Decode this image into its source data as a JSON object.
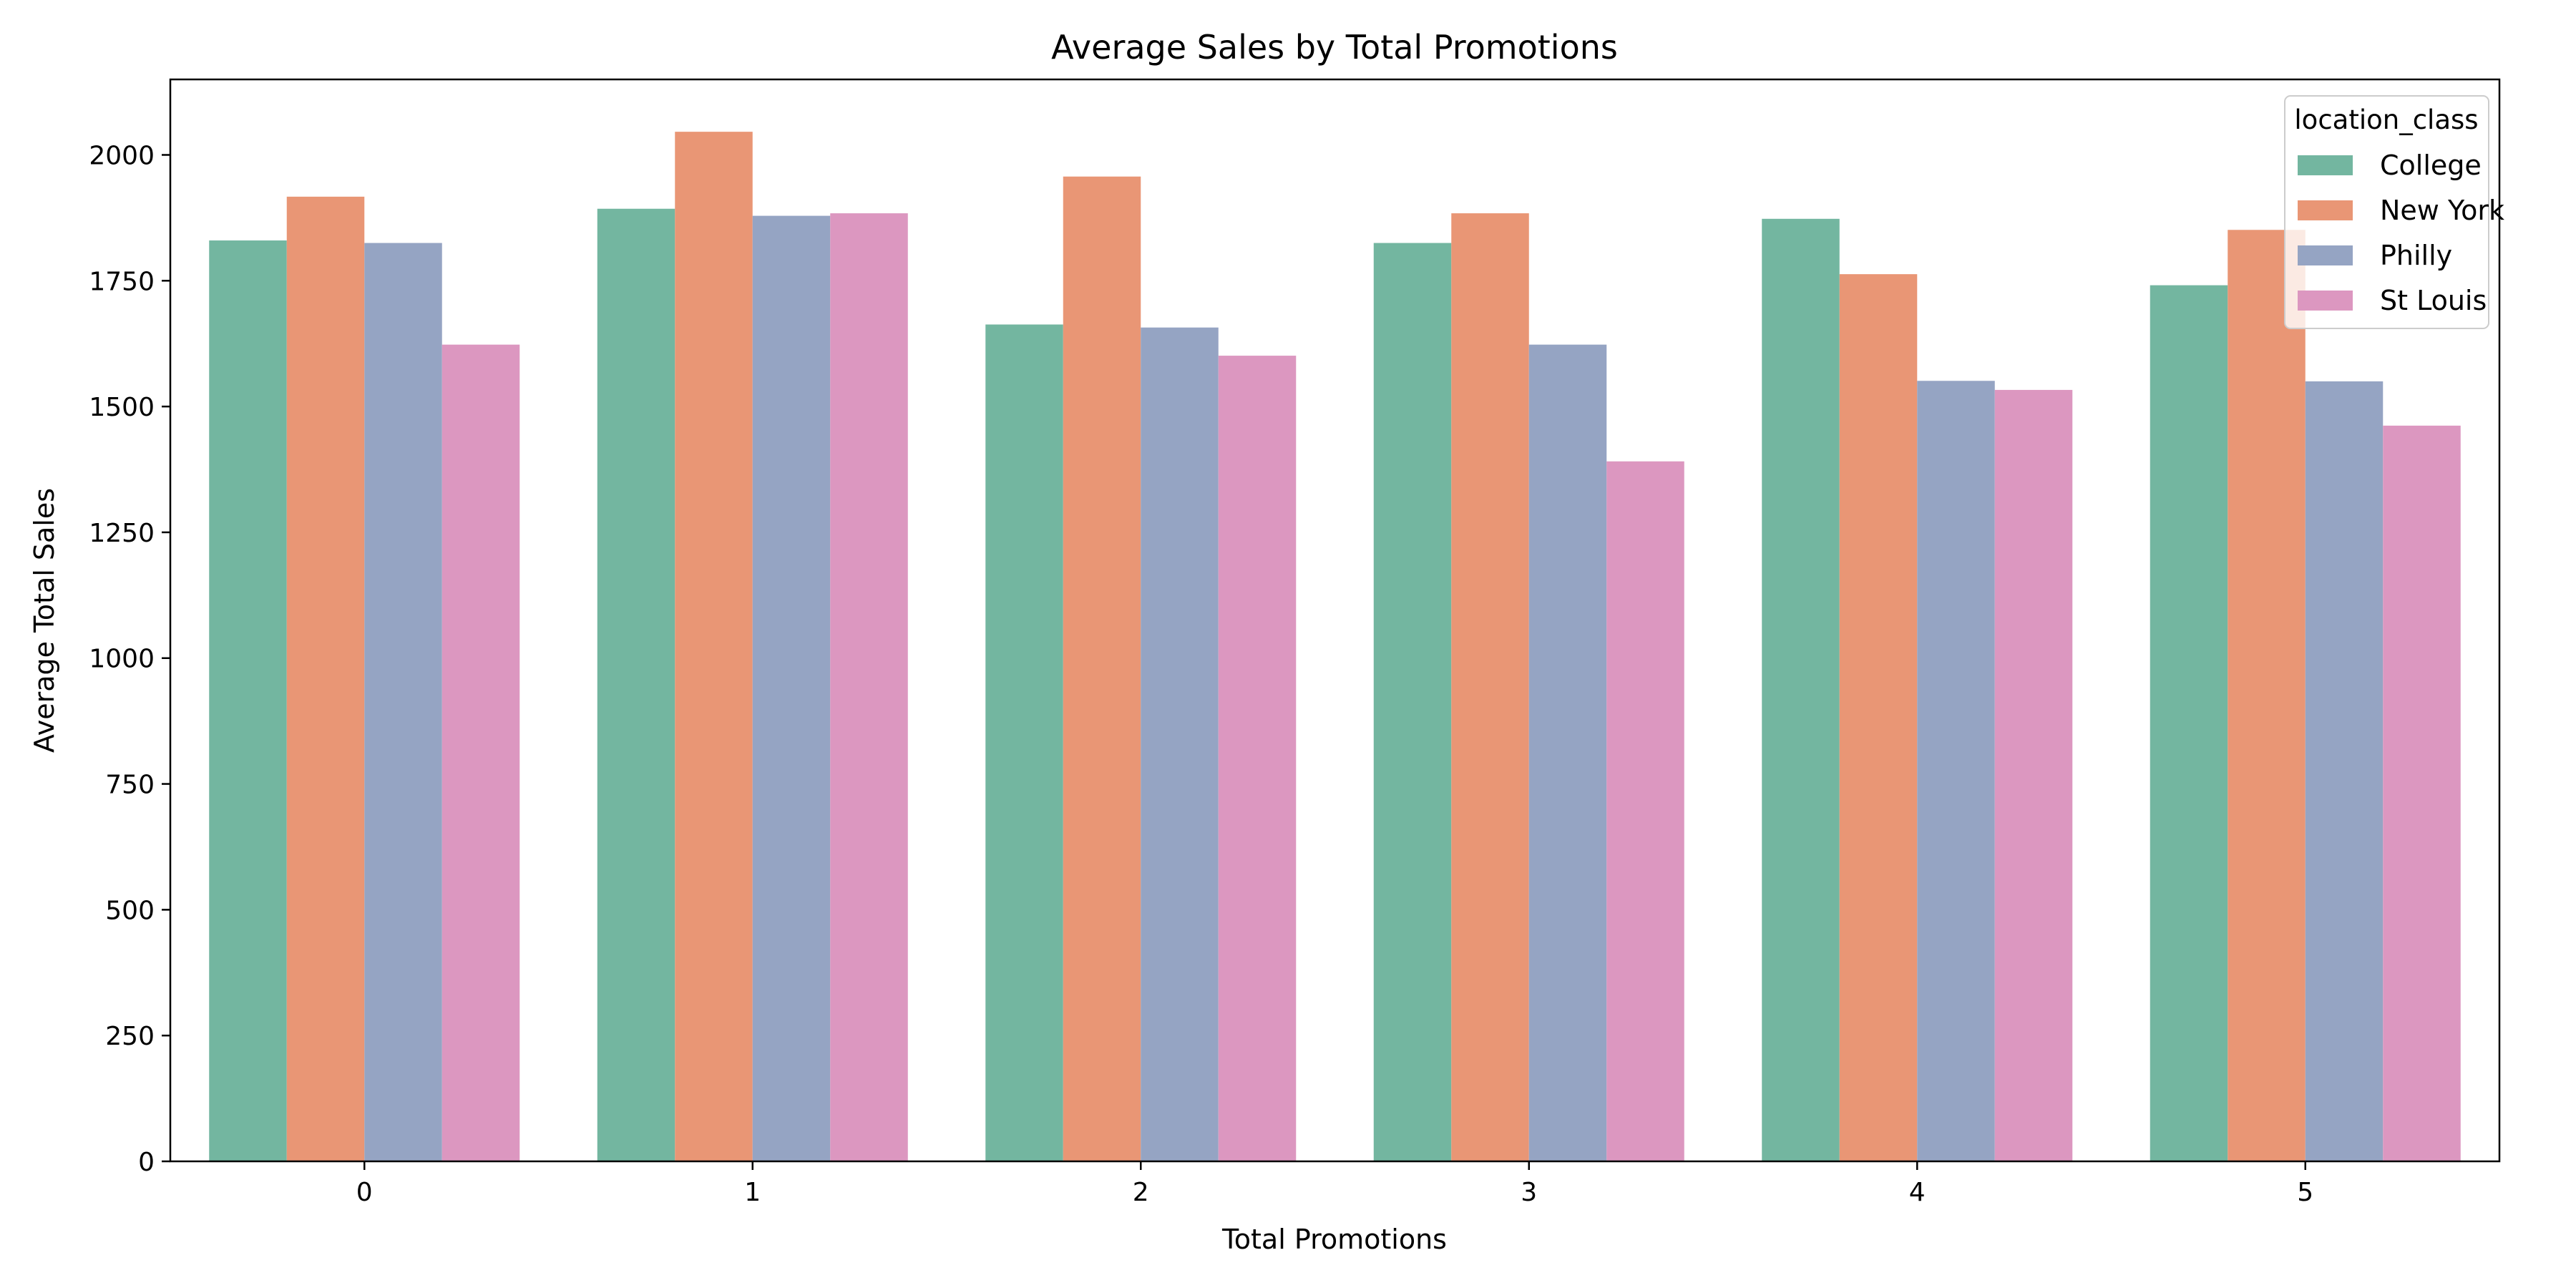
{
  "chart_data": {
    "type": "bar",
    "title": "Average Sales by Total Promotions",
    "xlabel": "Total Promotions",
    "ylabel": "Average Total Sales",
    "categories": [
      "0",
      "1",
      "2",
      "3",
      "4",
      "5"
    ],
    "ylim": [
      0,
      2150
    ],
    "yticks": [
      0,
      250,
      500,
      750,
      1000,
      1250,
      1500,
      1750,
      2000
    ],
    "grid": false,
    "legend": {
      "title": "location_class",
      "placement": "top-right"
    },
    "series": [
      {
        "name": "College",
        "color": "#73b6a0",
        "values": [
          1830,
          1893,
          1663,
          1825,
          1873,
          1741
        ]
      },
      {
        "name": "New York",
        "color": "#e99675",
        "values": [
          1917,
          2046,
          1957,
          1884,
          1763,
          1851
        ]
      },
      {
        "name": "Philly",
        "color": "#95a4c3",
        "values": [
          1825,
          1879,
          1657,
          1623,
          1551,
          1550
        ]
      },
      {
        "name": "St Louis",
        "color": "#dc97c0",
        "values": [
          1623,
          1884,
          1601,
          1391,
          1533,
          1462
        ]
      }
    ]
  }
}
